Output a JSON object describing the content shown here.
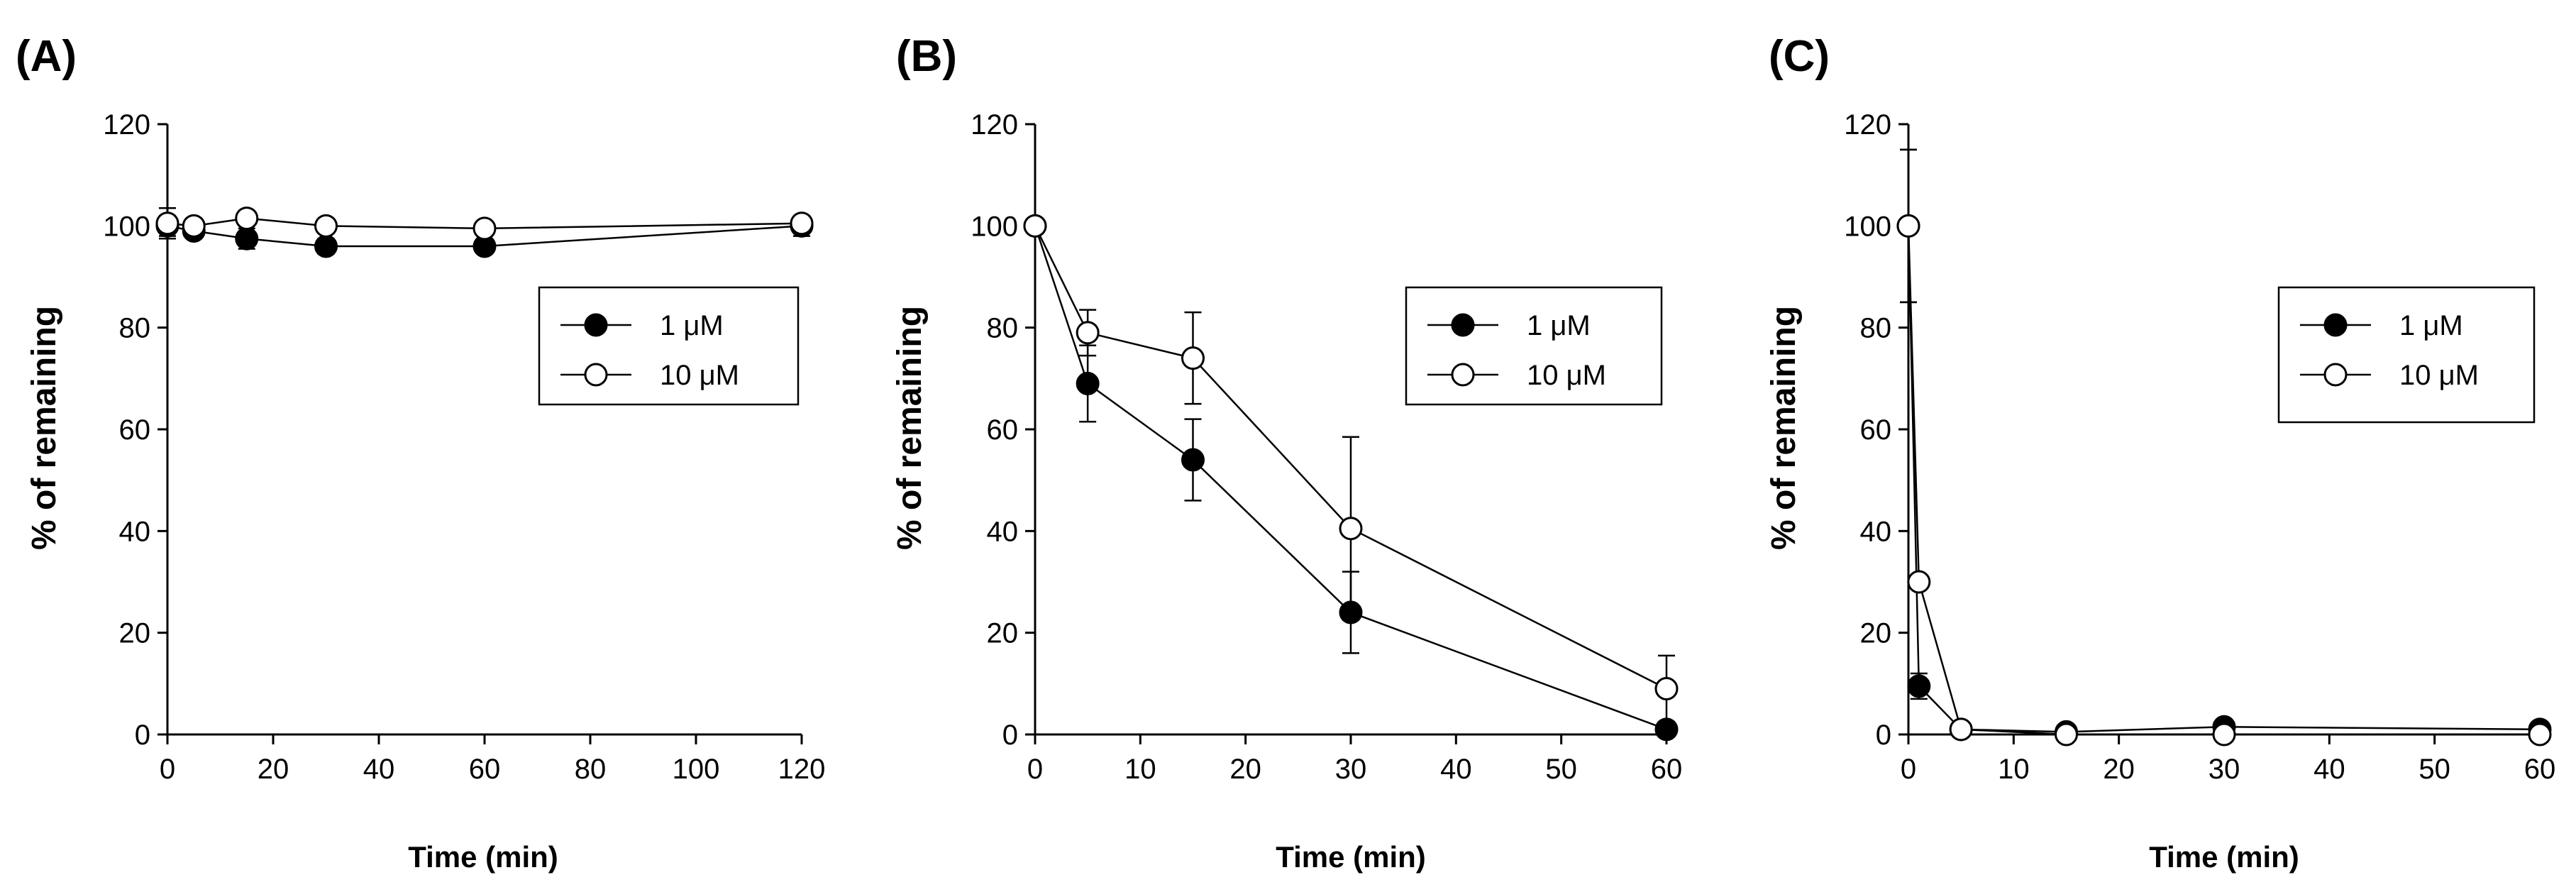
{
  "chart_data": [
    {
      "type": "line",
      "panel_label": "(A)",
      "xlabel": "Time (min)",
      "ylabel": "% of remaining",
      "xlim": [
        0,
        120
      ],
      "ylim": [
        0,
        120
      ],
      "xticks": [
        0,
        20,
        40,
        60,
        80,
        100,
        120
      ],
      "yticks": [
        0,
        20,
        40,
        60,
        80,
        100,
        120
      ],
      "legend_position": "upper-right",
      "series": [
        {
          "name": "1 μM",
          "marker": "filled-circle",
          "x": [
            0,
            5,
            15,
            30,
            60,
            120
          ],
          "y": [
            100,
            99,
            97.5,
            96,
            96,
            100
          ],
          "err": [
            2,
            1,
            2,
            1.5,
            1,
            2
          ]
        },
        {
          "name": "10 μM",
          "marker": "open-circle",
          "x": [
            0,
            5,
            15,
            30,
            60,
            120
          ],
          "y": [
            100.5,
            100,
            101.5,
            100,
            99.5,
            100.5
          ],
          "err": [
            3,
            1,
            1,
            1,
            1,
            1
          ]
        }
      ]
    },
    {
      "type": "line",
      "panel_label": "(B)",
      "xlabel": "Time (min)",
      "ylabel": "% of remaining",
      "xlim": [
        0,
        60
      ],
      "ylim": [
        0,
        120
      ],
      "xticks": [
        0,
        10,
        20,
        30,
        40,
        50,
        60
      ],
      "yticks": [
        0,
        20,
        40,
        60,
        80,
        100,
        120
      ],
      "legend_position": "upper-right",
      "series": [
        {
          "name": "1 μM",
          "marker": "filled-circle",
          "x": [
            0,
            5,
            15,
            30,
            60
          ],
          "y": [
            100,
            69,
            54,
            24,
            1
          ],
          "err": [
            1,
            7.5,
            8,
            8,
            1
          ]
        },
        {
          "name": "10 μM",
          "marker": "open-circle",
          "x": [
            0,
            5,
            15,
            30,
            60
          ],
          "y": [
            100,
            79,
            74,
            40.5,
            9
          ],
          "err": [
            1,
            4.5,
            9,
            18,
            6.5
          ]
        }
      ]
    },
    {
      "type": "line",
      "panel_label": "(C)",
      "xlabel": "Time (min)",
      "ylabel": "% of remaining",
      "xlim": [
        0,
        60
      ],
      "ylim": [
        0,
        120
      ],
      "xticks": [
        0,
        10,
        20,
        30,
        40,
        50,
        60
      ],
      "yticks": [
        0,
        20,
        40,
        60,
        80,
        100,
        120
      ],
      "legend_position": "upper-right",
      "series": [
        {
          "name": "1 μM",
          "marker": "filled-circle",
          "x": [
            0,
            1,
            5,
            15,
            30,
            60
          ],
          "y": [
            100,
            9.5,
            1,
            0.5,
            1.5,
            1
          ],
          "err": [
            15,
            2.5,
            0.5,
            0.5,
            0.5,
            0.5
          ]
        },
        {
          "name": "10 μM",
          "marker": "open-circle",
          "x": [
            0,
            1,
            5,
            15,
            30,
            60
          ],
          "y": [
            100,
            30,
            1,
            0,
            0,
            0
          ],
          "err": [
            15,
            0,
            0,
            0,
            0,
            0
          ]
        }
      ]
    }
  ]
}
